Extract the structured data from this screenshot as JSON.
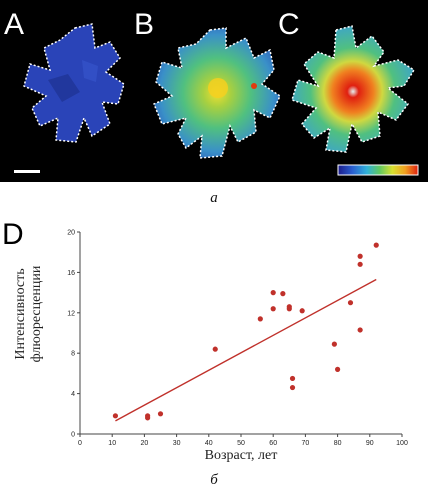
{
  "top_figure": {
    "panels": [
      {
        "letter": "A"
      },
      {
        "letter": "B"
      },
      {
        "letter": "C"
      }
    ],
    "colors": {
      "background": "#000000",
      "outline": "#ffffff",
      "low": "#2a3fb0",
      "mid": "#4fc07a",
      "high": "#e02a10"
    },
    "colorbar": [
      "#1c1c8c",
      "#2a5fd0",
      "#30b0d8",
      "#60c860",
      "#d8e030",
      "#f0a020",
      "#e02010"
    ],
    "scale_bar": true
  },
  "caption_a": "а",
  "caption_b": "б",
  "chart_panel_letter": "D",
  "chart_data": {
    "type": "scatter",
    "xlabel": "Возраст, лет",
    "ylabel_lines": [
      "Интенсивность",
      "флюоресценции"
    ],
    "xlim": [
      0,
      100
    ],
    "ylim": [
      0,
      20
    ],
    "xticks": [
      0,
      10,
      20,
      30,
      40,
      50,
      60,
      70,
      80,
      90,
      100
    ],
    "yticks": [
      0,
      4,
      8,
      12,
      16,
      20
    ],
    "marker_color": "#c0312b",
    "line_color": "#c0312b",
    "grid": false,
    "points": [
      {
        "x": 11,
        "y": 1.8
      },
      {
        "x": 21,
        "y": 1.8
      },
      {
        "x": 21,
        "y": 1.6
      },
      {
        "x": 25,
        "y": 2.0
      },
      {
        "x": 42,
        "y": 8.4
      },
      {
        "x": 56,
        "y": 11.4
      },
      {
        "x": 60,
        "y": 14.0
      },
      {
        "x": 60,
        "y": 12.4
      },
      {
        "x": 63,
        "y": 13.9
      },
      {
        "x": 65,
        "y": 12.6
      },
      {
        "x": 65,
        "y": 12.4
      },
      {
        "x": 66,
        "y": 5.5
      },
      {
        "x": 66,
        "y": 4.6
      },
      {
        "x": 69,
        "y": 12.2
      },
      {
        "x": 79,
        "y": 8.9
      },
      {
        "x": 80,
        "y": 6.4
      },
      {
        "x": 84,
        "y": 13.0
      },
      {
        "x": 87,
        "y": 17.6
      },
      {
        "x": 87,
        "y": 16.8
      },
      {
        "x": 87,
        "y": 10.3
      },
      {
        "x": 92,
        "y": 18.7
      }
    ],
    "trendline": {
      "x": [
        11,
        92
      ],
      "y": [
        1.3,
        15.3
      ]
    }
  }
}
